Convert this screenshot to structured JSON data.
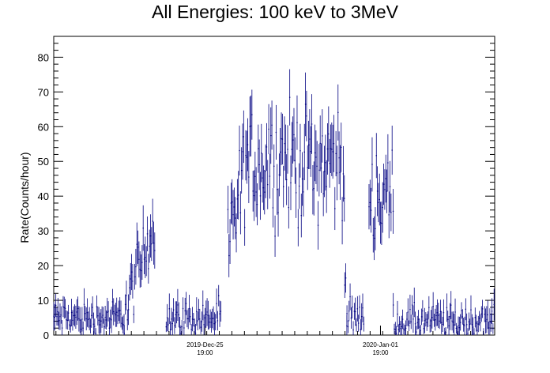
{
  "chart_data": {
    "type": "scatter",
    "title": "All Energies:  100 keV to 3MeV",
    "xlabel": "",
    "ylabel": "Rate(Counts/hour)",
    "ylim": [
      0,
      86
    ],
    "y_ticks": [
      0,
      10,
      20,
      30,
      40,
      50,
      60,
      70,
      80
    ],
    "x_tick_labels": [
      {
        "date": "2019-Dec-25",
        "time": "19:00"
      },
      {
        "date": "2020-Jan-01",
        "time": "19:00"
      }
    ],
    "series_color": "#000080",
    "grid": false,
    "legend": "none",
    "error_bars": true,
    "segments": [
      {
        "start": 0,
        "end": 0.16,
        "level": "low",
        "mean": 5,
        "noise": 4
      },
      {
        "start": 0.16,
        "end": 0.23,
        "level": "rise",
        "from": 6,
        "to": 33,
        "noise": 8
      },
      {
        "start": 0.23,
        "end": 0.255,
        "level": "gap"
      },
      {
        "start": 0.255,
        "end": 0.38,
        "level": "low",
        "mean": 5,
        "noise": 4
      },
      {
        "start": 0.38,
        "end": 0.395,
        "level": "gap"
      },
      {
        "start": 0.395,
        "end": 0.44,
        "level": "rise",
        "from": 25,
        "to": 50,
        "noise": 12
      },
      {
        "start": 0.44,
        "end": 0.66,
        "level": "high",
        "mean": 50,
        "noise": 14
      },
      {
        "start": 0.66,
        "end": 0.665,
        "level": "drop",
        "from": 20,
        "to": 3,
        "noise": 5
      },
      {
        "start": 0.665,
        "end": 0.705,
        "level": "low",
        "mean": 5,
        "noise": 4
      },
      {
        "start": 0.705,
        "end": 0.715,
        "level": "gap"
      },
      {
        "start": 0.715,
        "end": 0.77,
        "level": "high",
        "mean": 40,
        "noise": 12
      },
      {
        "start": 0.77,
        "end": 1.0,
        "level": "low",
        "mean": 4,
        "noise": 4
      }
    ],
    "annotations": []
  }
}
